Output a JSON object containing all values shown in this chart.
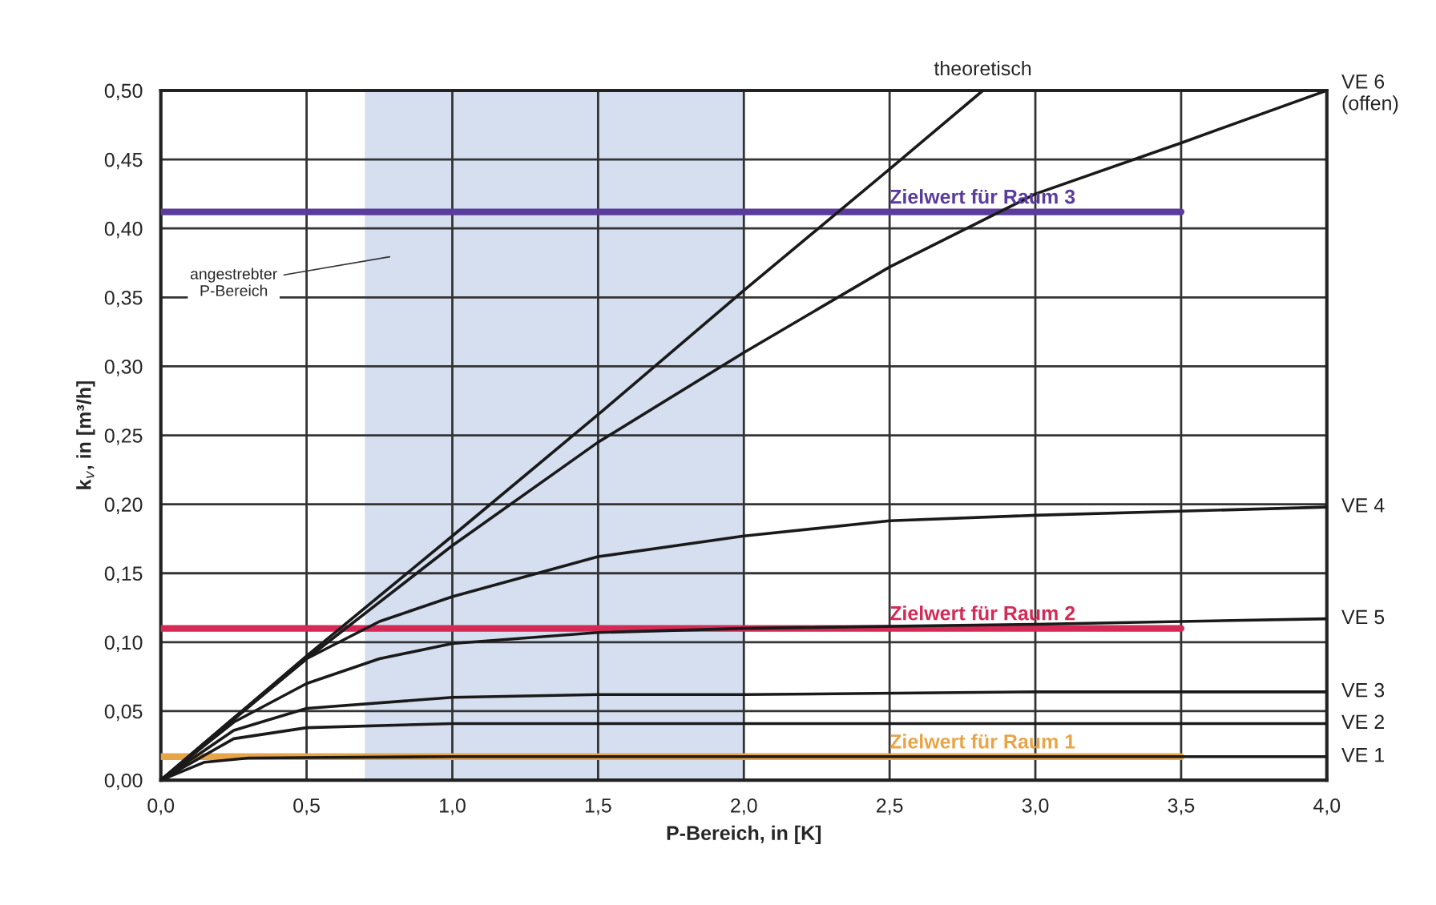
{
  "chart_data": {
    "type": "line",
    "xlabel": "P-Bereich, in [K]",
    "ylabel": "k$_{v}$, in [m³/h]",
    "xlim": [
      0,
      4
    ],
    "ylim": [
      0,
      0.5
    ],
    "xticks": [
      {
        "value": 0,
        "label": "0,0"
      },
      {
        "value": 0.5,
        "label": "0,5"
      },
      {
        "value": 1,
        "label": "1,0"
      },
      {
        "value": 1.5,
        "label": "1,5"
      },
      {
        "value": 2,
        "label": "2,0"
      },
      {
        "value": 2.5,
        "label": "2,5"
      },
      {
        "value": 3,
        "label": "3,0"
      },
      {
        "value": 3.5,
        "label": "3,5"
      },
      {
        "value": 4,
        "label": "4,0"
      }
    ],
    "yticks": [
      {
        "value": 0,
        "label": "0,00"
      },
      {
        "value": 0.05,
        "label": "0,05"
      },
      {
        "value": 0.1,
        "label": "0,10"
      },
      {
        "value": 0.15,
        "label": "0,15"
      },
      {
        "value": 0.2,
        "label": "0,20"
      },
      {
        "value": 0.25,
        "label": "0,25"
      },
      {
        "value": 0.3,
        "label": "0,30"
      },
      {
        "value": 0.35,
        "label": "0,35"
      },
      {
        "value": 0.4,
        "label": "0,40"
      },
      {
        "value": 0.45,
        "label": "0,45"
      },
      {
        "value": 0.5,
        "label": "0,50"
      }
    ],
    "grid": true,
    "legend": false,
    "marker": "none",
    "line_style": "solid",
    "bands": [
      {
        "axis": "x",
        "from": 0.7,
        "to": 2.0,
        "label": "angestrebter\nP-Bereich",
        "color": "#d5dff0"
      }
    ],
    "series": [
      {
        "name": "theoretisch",
        "color": "#1a1a1a",
        "x": [
          0,
          0.5,
          1,
          1.5,
          2,
          2.5,
          2.82
        ],
        "values": [
          0,
          0.09,
          0.177,
          0.265,
          0.355,
          0.443,
          0.5
        ]
      },
      {
        "name": "VE 6\n(offen)",
        "color": "#1a1a1a",
        "x": [
          0,
          0.5,
          1,
          1.5,
          2,
          2.5,
          3,
          3.5,
          4
        ],
        "values": [
          0,
          0.088,
          0.17,
          0.245,
          0.31,
          0.372,
          0.425,
          0.462,
          0.5
        ]
      },
      {
        "name": "VE 4",
        "color": "#1a1a1a",
        "x": [
          0,
          0.25,
          0.5,
          0.75,
          1,
          1.5,
          2,
          2.5,
          3,
          3.5,
          4
        ],
        "values": [
          0,
          0.045,
          0.088,
          0.115,
          0.133,
          0.162,
          0.177,
          0.188,
          0.192,
          0.195,
          0.198
        ]
      },
      {
        "name": "VE 5",
        "color": "#1a1a1a",
        "x": [
          0,
          0.25,
          0.5,
          0.75,
          1,
          1.5,
          2,
          3,
          3.5,
          4
        ],
        "values": [
          0,
          0.042,
          0.07,
          0.088,
          0.099,
          0.107,
          0.11,
          0.113,
          0.115,
          0.117
        ]
      },
      {
        "name": "VE 3",
        "color": "#1a1a1a",
        "x": [
          0,
          0.25,
          0.5,
          1,
          1.5,
          2,
          3,
          4
        ],
        "values": [
          0,
          0.036,
          0.052,
          0.06,
          0.062,
          0.062,
          0.064,
          0.064
        ]
      },
      {
        "name": "VE 2",
        "color": "#1a1a1a",
        "x": [
          0,
          0.25,
          0.5,
          1,
          2,
          4
        ],
        "values": [
          0,
          0.03,
          0.038,
          0.041,
          0.041,
          0.041
        ]
      },
      {
        "name": "VE 1",
        "color": "#1a1a1a",
        "x": [
          0,
          0.15,
          0.3,
          1,
          4
        ],
        "values": [
          0,
          0.013,
          0.016,
          0.017,
          0.017
        ]
      },
      {
        "name": "Zielwert für Raum 3",
        "color": "#5a3c9c",
        "x": [
          0,
          3.5
        ],
        "values": [
          0.412,
          0.412
        ]
      },
      {
        "name": "Zielwert für Raum 2",
        "color": "#d42a55",
        "x": [
          0,
          3.5
        ],
        "values": [
          0.11,
          0.11
        ]
      },
      {
        "name": "Zielwert für Raum 1",
        "color": "#e8a548",
        "x": [
          0,
          3.5
        ],
        "values": [
          0.017,
          0.017
        ]
      }
    ]
  }
}
